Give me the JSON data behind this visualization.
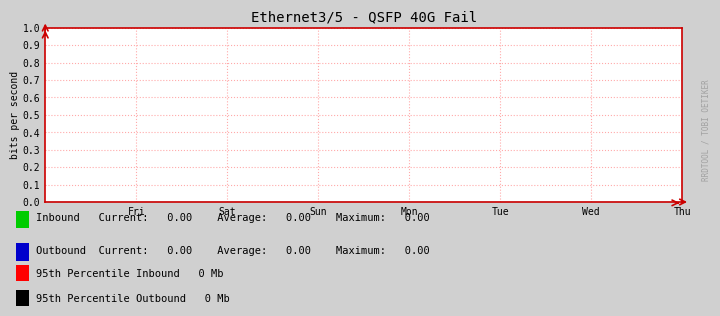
{
  "title": "Ethernet3/5 - QSFP 40G Fail",
  "ylabel": "bits per second",
  "outer_bg_color": "#d0d0d0",
  "plot_bg_color": "#ffffff",
  "grid_color": "#ffaaaa",
  "spine_color": "#cc0000",
  "x_day_labels": [
    "Fri",
    "Sat",
    "Sun",
    "Mon",
    "Tue",
    "Wed",
    "Thu"
  ],
  "ylim": [
    0,
    1.0
  ],
  "yticks": [
    0.0,
    0.1,
    0.2,
    0.3,
    0.4,
    0.5,
    0.6,
    0.7,
    0.8,
    0.9,
    1.0
  ],
  "watermark": "RRDTOOL / TOBI OETIKER",
  "inbound_color": "#00cc00",
  "outbound_color": "#0000cc",
  "percentile_color1": "#ff0000",
  "percentile_color2": "#000000",
  "font_color": "#000000",
  "title_fontsize": 10,
  "label_fontsize": 7,
  "tick_fontsize": 7,
  "legend_fontsize": 7.5,
  "watermark_fontsize": 5.5,
  "stats": [
    {
      "name": "Inbound",
      "current": "0.00",
      "average": "0.00",
      "maximum": "0.00"
    },
    {
      "name": "Outbound",
      "current": "0.00",
      "average": "0.00",
      "maximum": "0.00"
    }
  ],
  "percentiles": [
    {
      "label": "95th Percentile Inbound",
      "value": "0 Mb"
    },
    {
      "label": "95th Percentile Outbound",
      "value": "0 Mb"
    }
  ]
}
